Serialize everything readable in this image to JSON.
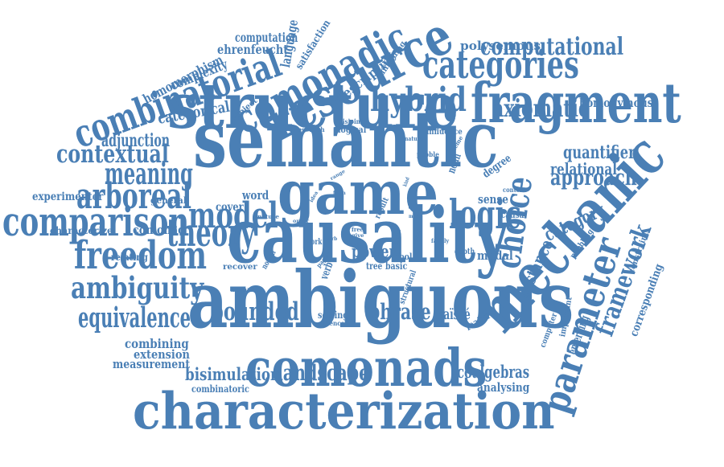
{
  "colors": {
    "word": "#4a7fb5",
    "background": "#ffffff"
  },
  "words": [
    "characterization",
    "ambiguous",
    "causality",
    "semantic",
    "mechanic",
    "structure",
    "game",
    "fragment",
    "resource",
    "comonadic",
    "comonads",
    "parameter",
    "combinatorial",
    "categories",
    "computational",
    "comparison",
    "hybrid",
    "freedom",
    "logic",
    "model",
    "ambiguity",
    "theory",
    "arboreal",
    "choice",
    "framework",
    "meaning",
    "contextual",
    "equivalence",
    "bounded",
    "landscape",
    "axiomatic",
    "approach",
    "phrase",
    "bisimulation",
    "coalgebras",
    "instance",
    "power",
    "adjunction",
    "category",
    "quantifier",
    "relational",
    "homomorphism",
    "complexity",
    "categorical",
    "computation",
    "ehrenfeucht",
    "language",
    "satisfaction",
    "descriptive",
    "unfolding",
    "polysemous",
    "homonymous",
    "subject",
    "experimenter",
    "general",
    "characterize",
    "comonad",
    "relating",
    "recover",
    "default",
    "combining",
    "extension",
    "measurement",
    "combinatoric",
    "analysing",
    "fraïssé",
    "feature",
    "emerging",
    "computer",
    "important",
    "corresponding",
    "constraint",
    "pebbling",
    "modal",
    "depth",
    "tree",
    "basic",
    "tool",
    "structural",
    "setting",
    "science",
    "verb",
    "notion",
    "work",
    "word",
    "cover",
    "nature",
    "sense",
    "causal",
    "degree",
    "noun",
    "context",
    "result",
    "more",
    "family",
    "order",
    "range",
    "form",
    "idea",
    "free",
    "type",
    "give",
    "verb",
    "natural",
    "influence",
    "scheme",
    "research",
    "disjoint",
    "logical",
    "pebble",
    "major",
    "proof",
    "paper",
    "mathematical",
    "kind"
  ]
}
